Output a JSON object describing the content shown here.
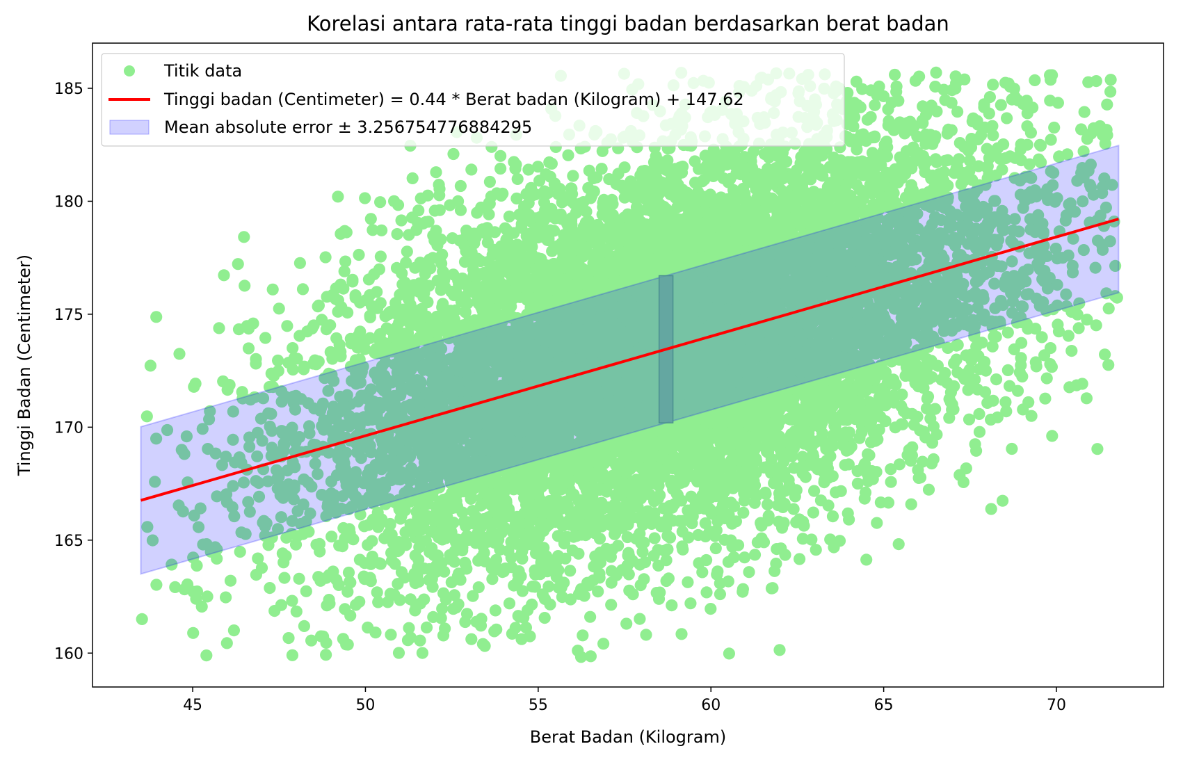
{
  "chart_data": {
    "type": "scatter",
    "title": "Korelasi antara rata-rata tinggi badan berdasarkan berat badan",
    "xlabel": "Berat Badan (Kilogram)",
    "ylabel": "Tinggi Badan (Centimeter)",
    "xlim": [
      42.1,
      73.1
    ],
    "ylim": [
      158.5,
      187.0
    ],
    "x_ticks": [
      45,
      50,
      55,
      60,
      65,
      70
    ],
    "y_ticks": [
      160,
      165,
      170,
      175,
      180,
      185
    ],
    "grid": false,
    "legend_position": "top-left",
    "legend": [
      "Titik data",
      "Tinggi badan (Centimeter) = 0.44 * Berat badan (Kilogram) + 147.62",
      "Mean absolute error ± 3.256754776884295"
    ],
    "colors": {
      "points": "#90ee90",
      "regression_line": "#ff0000",
      "error_band": "#0000ff",
      "error_bar": "#5f9ea0"
    },
    "scatter": {
      "name": "Titik data",
      "x_range": [
        43.5,
        71.8
      ],
      "mean_x": 58.6,
      "std_x": 5.0,
      "residual_std": 4.2,
      "point_count": 10000
    },
    "regression": {
      "name": "Tinggi badan (Centimeter) = 0.44 * Berat badan (Kilogram) + 147.62",
      "slope": 0.44,
      "intercept": 147.62,
      "x_range": [
        43.5,
        71.8
      ]
    },
    "error_band": {
      "name": "Mean absolute error ± 3.256754776884295",
      "mae": 3.256754776884295,
      "x_range": [
        43.5,
        71.8
      ]
    },
    "error_bar": {
      "x_range": [
        58.5,
        58.9
      ],
      "mae": 3.256754776884295
    }
  }
}
